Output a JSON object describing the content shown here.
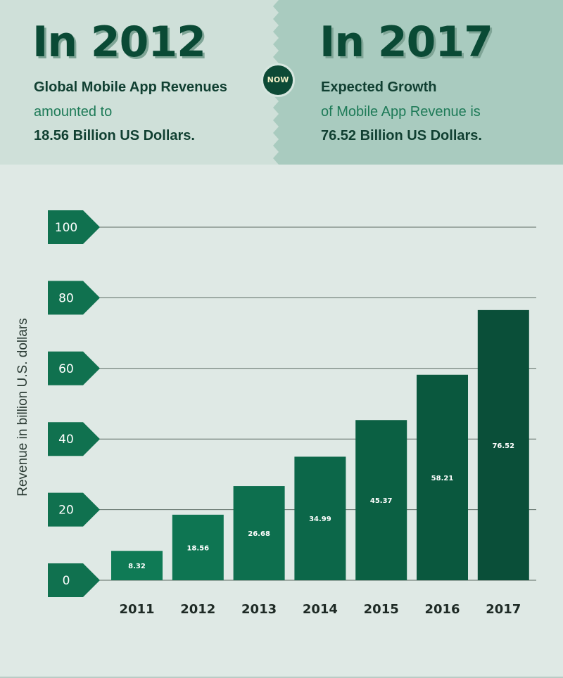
{
  "banner": {
    "left": {
      "heading": "In 2012",
      "line1": "Global Mobile App Revenues",
      "line2": "amounted to",
      "line3": "18.56 Billion US Dollars."
    },
    "badge": "NOW",
    "right": {
      "heading": "In 2017",
      "line1": "Expected Growth",
      "line2": "of Mobile App Revenue is",
      "line3": "76.52 Billion US Dollars."
    }
  },
  "colors": {
    "page_bg": "#dfe9e5",
    "left_panel": "#cfe0d9",
    "right_panel": "#a9cbbf",
    "bar_light": "#0f7a55",
    "bar_dark": "#0a4f39",
    "tick_tag": "#10714f"
  },
  "chart_data": {
    "type": "bar",
    "categories": [
      "2011",
      "2012",
      "2013",
      "2014",
      "2015",
      "2016",
      "2017"
    ],
    "values": [
      8.32,
      18.56,
      26.68,
      34.99,
      45.37,
      58.21,
      76.52
    ],
    "data_labels": [
      "8.32",
      "18.56",
      "26.68",
      "34.99",
      "45.37",
      "58.21",
      "76.52"
    ],
    "ylabel": "Revenue in billion U.S. dollars",
    "xlabel": "",
    "ylim": [
      0,
      100
    ],
    "yticks": [
      0,
      20,
      40,
      60,
      80,
      100
    ],
    "grid": true,
    "legend": "none"
  }
}
